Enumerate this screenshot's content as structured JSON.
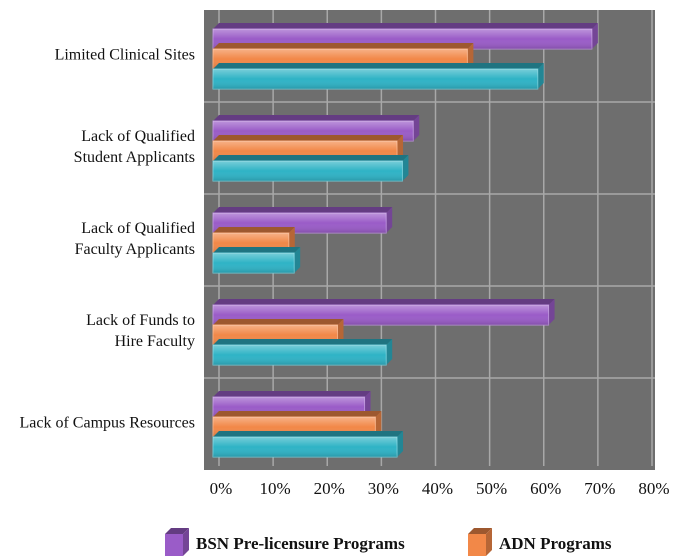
{
  "chart_data": {
    "type": "bar",
    "orientation": "horizontal",
    "categories": [
      "Limited Clinical Sites",
      "Lack of Qualified\nStudent Applicants",
      "Lack of Qualified\nFaculty Applicants",
      "Lack of Funds to\nHire Faculty",
      "Lack of Campus Resources"
    ],
    "series": [
      {
        "name": "BSN Pre-licensure Programs",
        "color": "#9a5cc8",
        "values": [
          70,
          37,
          32,
          62,
          28
        ]
      },
      {
        "name": "ADN Programs",
        "color": "#f28848",
        "values": [
          47,
          34,
          14,
          23,
          30
        ]
      },
      {
        "color": "#2fb3c6",
        "values": [
          60,
          35,
          15,
          32,
          34
        ]
      }
    ],
    "xlim": [
      0,
      80
    ],
    "xticks": [
      {
        "value": 0,
        "label": "0%"
      },
      {
        "value": 10,
        "label": "10%"
      },
      {
        "value": 20,
        "label": "20%"
      },
      {
        "value": 30,
        "label": "30%"
      },
      {
        "value": 40,
        "label": "40%"
      },
      {
        "value": 50,
        "label": "50%"
      },
      {
        "value": 60,
        "label": "60%"
      },
      {
        "value": 70,
        "label": "70%"
      },
      {
        "value": 80,
        "label": "80%"
      }
    ],
    "grid": true
  }
}
